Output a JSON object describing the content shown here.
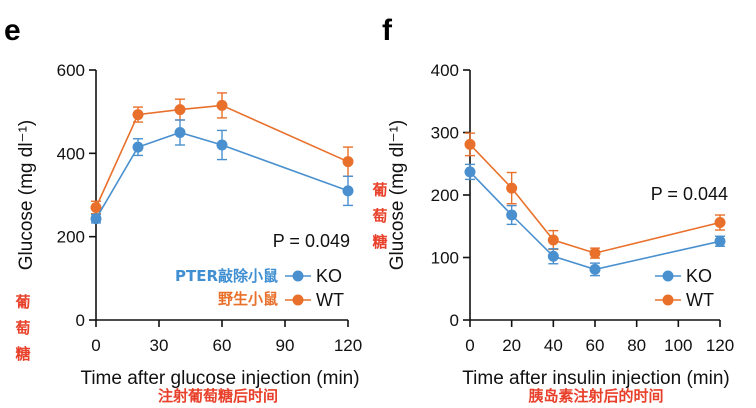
{
  "colors": {
    "ko": "#4a90cf",
    "wt": "#e8702a",
    "annotation_red": "#e8402a",
    "annotation_blue": "#3f8fd2",
    "axis": "#111111"
  },
  "chart_data": [
    {
      "panel": "e",
      "type": "line",
      "xlabel": "Time after glucose injection (min)",
      "ylabel": "Glucose (mg dl⁻¹)",
      "xticks": [
        0,
        30,
        60,
        90,
        120
      ],
      "yticks": [
        0,
        200,
        400,
        600
      ],
      "xlim": [
        0,
        120
      ],
      "ylim": [
        0,
        600
      ],
      "p_value_label": "P = 0.049",
      "legend_placement": "bottom-right",
      "series": [
        {
          "name": "KO",
          "color": "#4a90cf",
          "x": [
            0,
            20,
            40,
            60,
            120
          ],
          "y": [
            243,
            415,
            450,
            420,
            310
          ],
          "err": [
            10,
            20,
            30,
            35,
            35
          ]
        },
        {
          "name": "WT",
          "color": "#e8702a",
          "x": [
            0,
            20,
            40,
            60,
            120
          ],
          "y": [
            270,
            493,
            505,
            515,
            380
          ],
          "err": [
            15,
            18,
            25,
            30,
            35
          ]
        }
      ],
      "annotations": {
        "ko_cn": "PTER敲除小鼠",
        "wt_cn": "野生小鼠",
        "ylabel_cn": [
          "葡",
          "萄",
          "糖"
        ],
        "xlabel_cn": "注射葡萄糖后时间"
      }
    },
    {
      "panel": "f",
      "type": "line",
      "xlabel": "Time after insulin injection (min)",
      "ylabel": "Glucose (mg dl⁻¹)",
      "xticks": [
        0,
        20,
        40,
        60,
        80,
        100,
        120
      ],
      "yticks": [
        0,
        100,
        200,
        300,
        400
      ],
      "xlim": [
        0,
        120
      ],
      "ylim": [
        0,
        400
      ],
      "p_value_label": "P = 0.044",
      "legend_placement": "bottom-right",
      "series": [
        {
          "name": "KO",
          "color": "#4a90cf",
          "x": [
            0,
            20,
            40,
            60,
            120
          ],
          "y": [
            237,
            168,
            102,
            81,
            126
          ],
          "err": [
            12,
            15,
            12,
            10,
            8
          ]
        },
        {
          "name": "WT",
          "color": "#e8702a",
          "x": [
            0,
            20,
            40,
            60,
            120
          ],
          "y": [
            281,
            211,
            128,
            107,
            156
          ],
          "err": [
            18,
            25,
            15,
            8,
            12
          ]
        }
      ],
      "annotations": {
        "ylabel_cn": [
          "葡",
          "萄",
          "糖"
        ],
        "xlabel_cn": "胰岛素注射后的时间"
      }
    }
  ]
}
